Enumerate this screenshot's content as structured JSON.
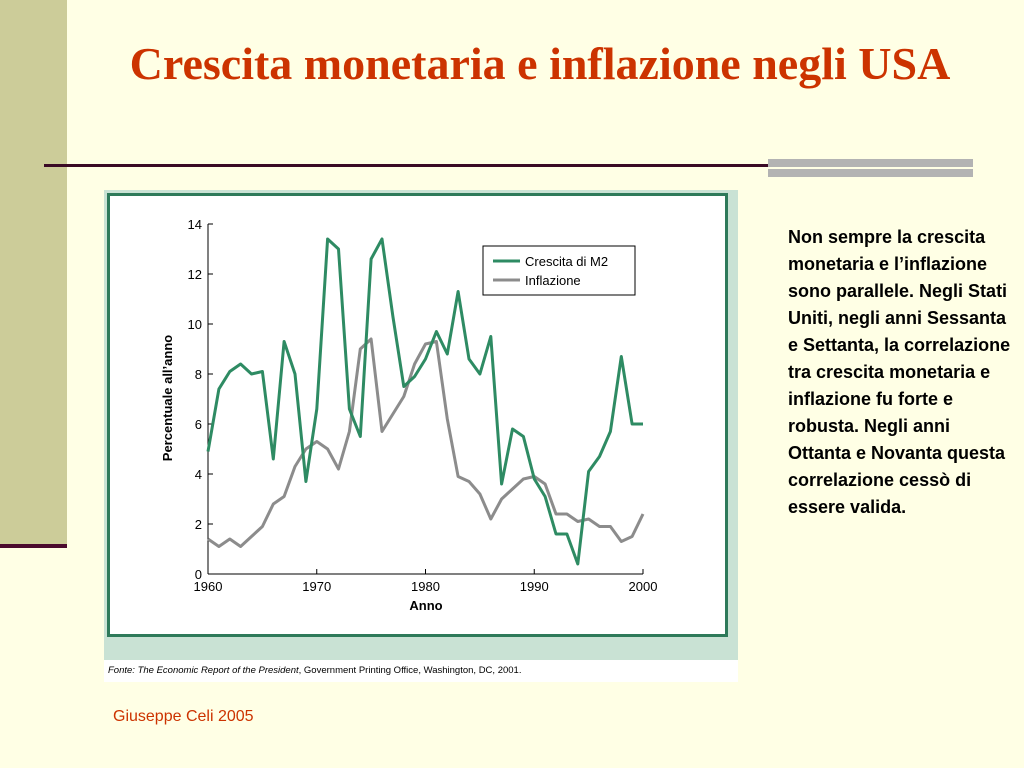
{
  "slide": {
    "title": "Crescita monetaria e inflazione negli USA",
    "note": "Non sempre la crescita monetaria e l’inflazione sono parallele. Negli Stati Uniti, negli anni Sessanta e Settanta, la correlazione tra crescita monetaria e inflazione fu forte e robusta. Negli anni Ottanta e Novanta questa correlazione cessò di essere valida.",
    "author": "Giuseppe Celi  2005",
    "source_label": "Fonte:",
    "source_title": "The Economic Report of the President",
    "source_rest": ", Government Printing Office, Washington, DC, 2001."
  },
  "colors": {
    "title": "#cc3300",
    "m2": "#2e8b63",
    "inflation": "#8c8c8c",
    "frame": "#2e7a5a"
  },
  "chart_data": {
    "type": "line",
    "xlabel": "Anno",
    "ylabel": "Percentuale all’anno",
    "xlim": [
      1960,
      2000
    ],
    "ylim": [
      0,
      14
    ],
    "xticks": [
      1960,
      1970,
      1980,
      1990,
      2000
    ],
    "yticks": [
      0,
      2,
      4,
      6,
      8,
      10,
      12,
      14
    ],
    "legend_position": "top-right",
    "x": [
      1960,
      1961,
      1962,
      1963,
      1964,
      1965,
      1966,
      1967,
      1968,
      1969,
      1970,
      1971,
      1972,
      1973,
      1974,
      1975,
      1976,
      1977,
      1978,
      1979,
      1980,
      1981,
      1982,
      1983,
      1984,
      1985,
      1986,
      1987,
      1988,
      1989,
      1990,
      1991,
      1992,
      1993,
      1994,
      1995,
      1996,
      1997,
      1998,
      1999,
      2000
    ],
    "series": [
      {
        "name": "Crescita di M2",
        "color": "#2e8b63",
        "values": [
          4.9,
          7.4,
          8.1,
          8.4,
          8.0,
          8.1,
          4.6,
          9.3,
          8.0,
          3.7,
          6.6,
          13.4,
          13.0,
          6.6,
          5.5,
          12.6,
          13.4,
          10.3,
          7.5,
          7.9,
          8.6,
          9.7,
          8.8,
          11.3,
          8.6,
          8.0,
          9.5,
          3.6,
          5.8,
          5.5,
          3.8,
          3.1,
          1.6,
          1.6,
          0.4,
          4.1,
          4.7,
          5.7,
          8.7,
          6.0,
          6.0
        ]
      },
      {
        "name": "Inflazione",
        "color": "#8c8c8c",
        "values": [
          1.4,
          1.1,
          1.4,
          1.1,
          1.5,
          1.9,
          2.8,
          3.1,
          4.3,
          5.0,
          5.3,
          5.0,
          4.2,
          5.7,
          9.0,
          9.4,
          5.7,
          6.4,
          7.1,
          8.4,
          9.2,
          9.3,
          6.2,
          3.9,
          3.7,
          3.2,
          2.2,
          3.0,
          3.4,
          3.8,
          3.9,
          3.6,
          2.4,
          2.4,
          2.1,
          2.2,
          1.9,
          1.9,
          1.3,
          1.5,
          2.4
        ]
      }
    ]
  }
}
